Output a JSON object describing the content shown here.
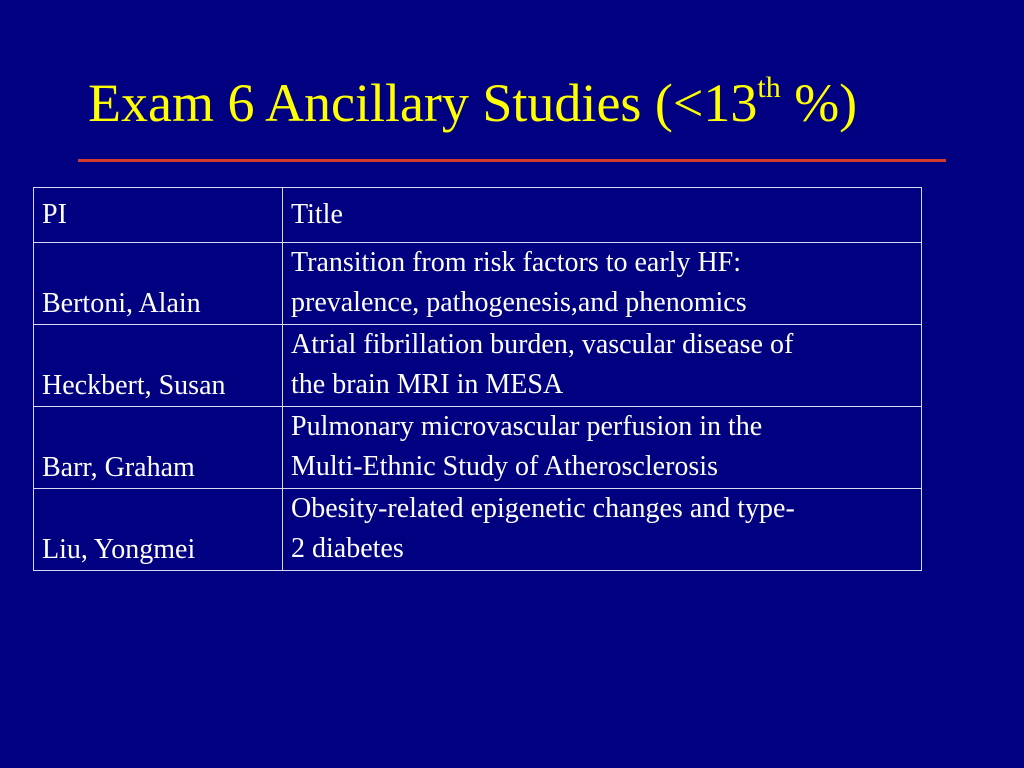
{
  "slide": {
    "title_main": "Exam 6 Ancillary Studies (<13",
    "title_sup": "th",
    "title_end": " %)",
    "rule_color": "#d33a2c",
    "background": "#000080",
    "title_color": "#ffff00"
  },
  "table": {
    "headers": {
      "pi": "PI",
      "title": "Title"
    },
    "rows": [
      {
        "pi": "Bertoni, Alain",
        "title_line1": "Transition from risk factors to early HF:",
        "title_line2": "prevalence, pathogenesis,and phenomics"
      },
      {
        "pi": "Heckbert, Susan",
        "title_line1": "Atrial fibrillation burden, vascular disease of",
        "title_line2": "the brain MRI in MESA"
      },
      {
        "pi": "Barr, Graham",
        "title_line1": "Pulmonary microvascular perfusion in the",
        "title_line2": "Multi-Ethnic Study of Atherosclerosis"
      },
      {
        "pi": "Liu, Yongmei",
        "title_line1": "Obesity-related epigenetic changes and type-",
        "title_line2": "2 diabetes"
      }
    ]
  }
}
